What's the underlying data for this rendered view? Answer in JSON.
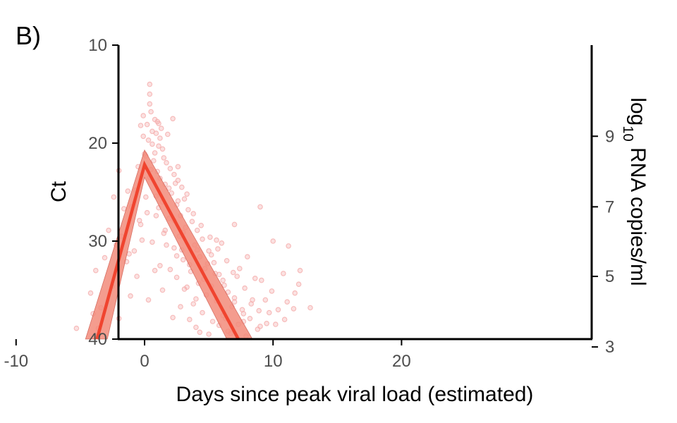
{
  "panel_label": "B)",
  "chart_data": {
    "type": "line",
    "xlabel": "Days since peak viral load (estimated)",
    "ylabel": "Ct",
    "y2label": {
      "prefix": "log",
      "subscript": "10",
      "suffix": " RNA copies/ml"
    },
    "xlim": [
      -12,
      25
    ],
    "ylim": [
      10,
      40
    ],
    "y_reversed": true,
    "xticks": [
      {
        "value": -10,
        "label": "-10"
      },
      {
        "value": 0,
        "label": "0"
      },
      {
        "value": 10,
        "label": "10"
      },
      {
        "value": 20,
        "label": "20"
      }
    ],
    "yticks": [
      {
        "value": 10,
        "label": "10"
      },
      {
        "value": 20,
        "label": "20"
      },
      {
        "value": 30,
        "label": "30"
      },
      {
        "value": 40,
        "label": "40"
      }
    ],
    "y2ticks": [
      {
        "value": 9,
        "label": "9",
        "ct": 19.3
      },
      {
        "value": 7,
        "label": "7",
        "ct": 26.5
      },
      {
        "value": 5,
        "label": "5",
        "ct": 33.6
      },
      {
        "value": 3,
        "label": "3",
        "ct": 40.8
      }
    ],
    "grid": false,
    "colors": {
      "line": "#f0442f",
      "ribbon": "#f28b7a",
      "points": "#f4a9a8",
      "axis": "#000000",
      "tick_text": "#4d4d4d"
    },
    "series": [
      {
        "kind": "line",
        "x": [
          -3.7,
          0,
          7.3
        ],
        "y": [
          40,
          22.2,
          40
        ]
      },
      {
        "kind": "ribbon",
        "x": [
          -4.6,
          0,
          8.4
        ],
        "y_low": [
          40,
          20.7,
          40
        ],
        "x_high": [
          -2.9,
          0,
          6.4
        ],
        "y_high": [
          40,
          23.5,
          40
        ]
      },
      {
        "kind": "scatter",
        "points": [
          [
            0.4,
            14.0
          ],
          [
            0.4,
            15.0
          ],
          [
            0.4,
            16.0
          ],
          [
            0.5,
            16.8
          ],
          [
            -0.1,
            17.2
          ],
          [
            0.8,
            17.6
          ],
          [
            1.0,
            17.8
          ],
          [
            1.1,
            18.0
          ],
          [
            -0.3,
            18.2
          ],
          [
            0.2,
            18.1
          ],
          [
            1.3,
            18.5
          ],
          [
            0.6,
            18.8
          ],
          [
            0.9,
            19.0
          ],
          [
            -0.1,
            19.3
          ],
          [
            1.2,
            19.5
          ],
          [
            0.3,
            19.7
          ],
          [
            0.6,
            20.1
          ],
          [
            1.1,
            20.3
          ],
          [
            1.4,
            20.6
          ],
          [
            0.8,
            21.0
          ],
          [
            0.1,
            21.3
          ],
          [
            1.5,
            21.5
          ],
          [
            0.7,
            21.8
          ],
          [
            1.7,
            22.0
          ],
          [
            -0.5,
            22.4
          ],
          [
            2.0,
            22.6
          ],
          [
            1.0,
            22.9
          ],
          [
            2.3,
            23.2
          ],
          [
            0.4,
            23.5
          ],
          [
            2.6,
            23.8
          ],
          [
            1.6,
            24.2
          ],
          [
            2.9,
            24.5
          ],
          [
            -0.7,
            24.8
          ],
          [
            2.1,
            25.1
          ],
          [
            0.9,
            25.4
          ],
          [
            3.1,
            25.7
          ],
          [
            1.4,
            26.0
          ],
          [
            2.5,
            26.3
          ],
          [
            -1.0,
            26.5
          ],
          [
            3.4,
            26.8
          ],
          [
            0.2,
            27.1
          ],
          [
            2.8,
            27.4
          ],
          [
            1.9,
            27.7
          ],
          [
            3.7,
            28.0
          ],
          [
            -0.3,
            28.3
          ],
          [
            3.2,
            28.6
          ],
          [
            4.1,
            28.9
          ],
          [
            1.5,
            29.2
          ],
          [
            2.7,
            29.5
          ],
          [
            4.5,
            29.8
          ],
          [
            0.6,
            30.1
          ],
          [
            3.9,
            30.4
          ],
          [
            2.3,
            30.7
          ],
          [
            5.0,
            31.0
          ],
          [
            -1.2,
            31.3
          ],
          [
            4.3,
            31.6
          ],
          [
            3.0,
            31.9
          ],
          [
            5.4,
            32.2
          ],
          [
            1.2,
            32.5
          ],
          [
            4.7,
            32.8
          ],
          [
            3.6,
            33.1
          ],
          [
            5.8,
            33.4
          ],
          [
            2.5,
            33.7
          ],
          [
            6.1,
            34.0
          ],
          [
            4.2,
            34.3
          ],
          [
            5.2,
            34.6
          ],
          [
            3.1,
            34.9
          ],
          [
            6.5,
            35.2
          ],
          [
            4.8,
            35.5
          ],
          [
            7.0,
            35.8
          ],
          [
            5.6,
            36.1
          ],
          [
            3.8,
            36.4
          ],
          [
            6.8,
            36.7
          ],
          [
            7.6,
            37.0
          ],
          [
            4.5,
            37.3
          ],
          [
            6.1,
            37.6
          ],
          [
            8.2,
            37.9
          ],
          [
            5.3,
            38.2
          ],
          [
            7.3,
            38.5
          ],
          [
            4.0,
            38.8
          ],
          [
            8.8,
            39.0
          ],
          [
            6.5,
            39.2
          ],
          [
            5.0,
            39.5
          ],
          [
            7.9,
            39.7
          ],
          [
            9.5,
            38.4
          ],
          [
            10.4,
            37.0
          ],
          [
            11.1,
            36.2
          ],
          [
            9.9,
            35.1
          ],
          [
            12.9,
            36.8
          ],
          [
            11.7,
            35.3
          ],
          [
            12.0,
            34.4
          ],
          [
            9.1,
            34.0
          ],
          [
            10.8,
            33.3
          ],
          [
            11.2,
            30.5
          ],
          [
            12.1,
            33.0
          ],
          [
            10.0,
            30.0
          ],
          [
            9.0,
            26.5
          ],
          [
            7.0,
            28.3
          ],
          [
            6.0,
            30.2
          ],
          [
            5.2,
            31.4
          ],
          [
            6.9,
            33.2
          ],
          [
            8.0,
            31.6
          ],
          [
            5.6,
            29.9
          ],
          [
            7.4,
            32.8
          ],
          [
            8.6,
            33.8
          ],
          [
            9.4,
            36.0
          ],
          [
            10.2,
            38.5
          ],
          [
            10.9,
            38.0
          ],
          [
            8.3,
            36.4
          ],
          [
            9.7,
            37.3
          ],
          [
            6.3,
            37.9
          ],
          [
            11.6,
            36.9
          ],
          [
            2.2,
            17.5
          ],
          [
            1.8,
            19.1
          ],
          [
            2.6,
            22.4
          ],
          [
            2.4,
            24.1
          ],
          [
            3.3,
            25.2
          ],
          [
            -2.0,
            22.8
          ],
          [
            -2.4,
            25.5
          ],
          [
            -1.6,
            26.7
          ],
          [
            -2.8,
            28.9
          ],
          [
            -3.1,
            31.7
          ],
          [
            -3.8,
            33.0
          ],
          [
            -4.2,
            35.3
          ],
          [
            -2.2,
            30.4
          ],
          [
            -1.4,
            32.1
          ],
          [
            -2.5,
            34.6
          ],
          [
            -3.4,
            36.8
          ],
          [
            -5.3,
            38.9
          ],
          [
            -4.0,
            37.4
          ],
          [
            -2.0,
            37.9
          ],
          [
            -1.1,
            35.6
          ],
          [
            -0.6,
            33.6
          ],
          [
            -1.8,
            29.5
          ],
          [
            -0.4,
            27.9
          ],
          [
            -1.3,
            24.9
          ],
          [
            -0.2,
            29.9
          ],
          [
            0.9,
            27.4
          ],
          [
            1.6,
            28.9
          ],
          [
            2.9,
            30.9
          ],
          [
            3.5,
            32.4
          ],
          [
            4.6,
            33.9
          ],
          [
            2.0,
            32.9
          ],
          [
            3.3,
            34.7
          ],
          [
            4.0,
            35.9
          ],
          [
            2.8,
            36.7
          ],
          [
            3.5,
            38.0
          ],
          [
            4.3,
            39.3
          ],
          [
            5.8,
            38.6
          ],
          [
            6.7,
            39.4
          ],
          [
            7.7,
            38.2
          ],
          [
            8.9,
            37.1
          ],
          [
            0.0,
            21.1
          ],
          [
            0.5,
            22.7
          ],
          [
            1.2,
            23.6
          ],
          [
            1.9,
            24.6
          ],
          [
            2.6,
            25.9
          ],
          [
            3.8,
            27.2
          ],
          [
            4.4,
            28.4
          ],
          [
            5.1,
            29.6
          ],
          [
            5.7,
            30.8
          ],
          [
            6.4,
            32.0
          ],
          [
            7.2,
            33.6
          ],
          [
            7.8,
            34.8
          ],
          [
            8.4,
            36.0
          ],
          [
            9.0,
            38.7
          ],
          [
            0.1,
            25.5
          ],
          [
            1.1,
            26.6
          ],
          [
            2.3,
            27.9
          ],
          [
            3.0,
            29.1
          ],
          [
            4.1,
            30.9
          ],
          [
            4.9,
            32.3
          ],
          [
            5.5,
            33.3
          ],
          [
            6.2,
            34.5
          ],
          [
            7.0,
            36.2
          ],
          [
            7.7,
            37.4
          ],
          [
            1.7,
            30.4
          ],
          [
            2.5,
            31.5
          ],
          [
            0.8,
            33.0
          ],
          [
            -0.8,
            31.0
          ],
          [
            0.3,
            36.0
          ],
          [
            1.4,
            35.0
          ],
          [
            2.2,
            37.8
          ],
          [
            -3.6,
            38.9
          ]
        ]
      }
    ]
  }
}
